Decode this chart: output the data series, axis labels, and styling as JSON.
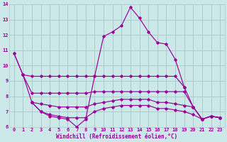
{
  "xlabel": "Windchill (Refroidissement éolien,°C)",
  "bg_color": "#cce8e8",
  "grid_color": "#aacccc",
  "line_color": "#990099",
  "xlim": [
    -0.5,
    23.5
  ],
  "ylim": [
    6,
    14
  ],
  "yticks": [
    6,
    7,
    8,
    9,
    10,
    11,
    12,
    13,
    14
  ],
  "xticks": [
    0,
    1,
    2,
    3,
    4,
    5,
    6,
    7,
    8,
    9,
    10,
    11,
    12,
    13,
    14,
    15,
    16,
    17,
    18,
    19,
    20,
    21,
    22,
    23
  ],
  "line1_x": [
    0,
    1,
    2,
    3,
    4,
    5,
    6,
    7,
    8,
    9,
    10,
    11,
    12,
    13,
    14,
    15,
    16,
    17,
    18,
    19
  ],
  "line1_y": [
    10.8,
    9.4,
    9.3,
    9.3,
    9.3,
    9.3,
    9.3,
    9.3,
    9.3,
    9.3,
    9.3,
    9.3,
    9.3,
    9.3,
    9.3,
    9.3,
    9.3,
    9.3,
    9.3,
    8.6
  ],
  "line2_x": [
    1,
    2,
    3,
    4,
    5,
    6,
    7,
    8,
    9,
    10,
    11,
    12,
    13,
    14,
    15,
    16,
    17,
    18,
    19,
    20,
    21,
    22,
    23
  ],
  "line2_y": [
    9.4,
    8.2,
    8.2,
    8.2,
    8.2,
    8.2,
    8.2,
    8.2,
    8.3,
    8.3,
    8.3,
    8.3,
    8.3,
    8.3,
    8.3,
    8.3,
    8.3,
    8.3,
    8.3,
    7.3,
    6.5,
    6.7,
    6.6
  ],
  "line3_x": [
    2,
    3,
    4,
    5,
    6,
    7,
    8,
    9,
    10,
    11,
    12,
    13,
    14,
    15,
    16,
    17,
    18,
    19,
    20,
    21,
    22,
    23
  ],
  "line3_y": [
    7.6,
    7.5,
    7.4,
    7.3,
    7.3,
    7.3,
    7.3,
    7.5,
    7.6,
    7.7,
    7.8,
    7.8,
    7.8,
    7.8,
    7.6,
    7.6,
    7.5,
    7.4,
    7.3,
    6.5,
    6.7,
    6.6
  ],
  "line4_x": [
    2,
    3,
    4,
    5,
    6,
    7,
    8,
    9,
    10,
    11,
    12,
    13,
    14,
    15,
    16,
    17,
    18,
    19,
    20,
    21,
    22,
    23
  ],
  "line4_y": [
    7.6,
    7.0,
    6.8,
    6.7,
    6.6,
    6.6,
    6.6,
    7.0,
    7.2,
    7.3,
    7.4,
    7.4,
    7.4,
    7.4,
    7.2,
    7.2,
    7.1,
    7.0,
    6.8,
    6.5,
    6.7,
    6.6
  ],
  "line5_x": [
    0,
    1,
    2,
    3,
    4,
    5,
    6,
    7,
    8,
    9,
    10,
    11,
    12,
    13,
    14,
    15,
    16,
    17,
    18,
    19,
    20,
    21,
    22,
    23
  ],
  "line5_y": [
    10.8,
    9.4,
    7.6,
    7.0,
    6.7,
    6.6,
    6.5,
    6.0,
    6.5,
    9.3,
    11.9,
    12.2,
    12.6,
    13.8,
    13.1,
    12.2,
    11.5,
    11.4,
    10.4,
    8.6,
    7.3,
    6.5,
    6.7,
    6.6
  ]
}
